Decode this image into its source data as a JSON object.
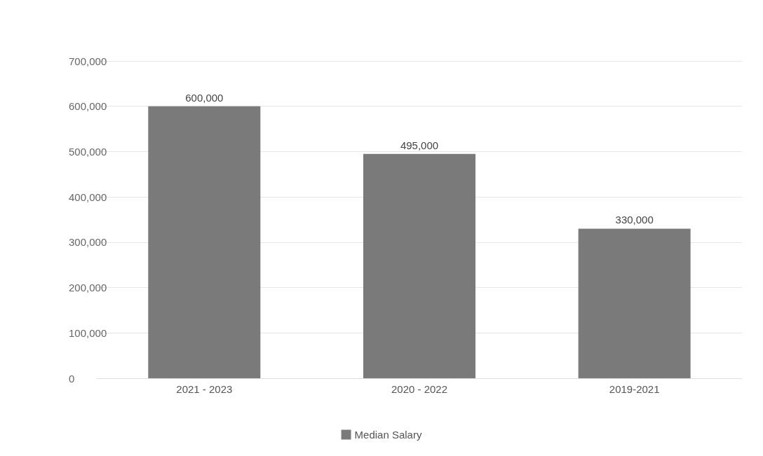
{
  "chart_data": {
    "type": "bar",
    "categories": [
      "2021 - 2023",
      "2020 - 2022",
      "2019-2021"
    ],
    "series": [
      {
        "name": "Median Salary",
        "color": "#7a7a7a",
        "values": [
          600000,
          495000,
          330000
        ],
        "value_labels": [
          "600,000",
          "495,000",
          "330,000"
        ]
      }
    ],
    "ylim": [
      0,
      700000
    ],
    "yticks": [
      0,
      {
        "value": 100000,
        "label": "100,000"
      },
      {
        "value": 200000,
        "label": "200,000"
      },
      {
        "value": 300000,
        "label": "300,000"
      },
      {
        "value": 400000,
        "label": "400,000"
      },
      {
        "value": 500000,
        "label": "500,000"
      },
      {
        "value": 600000,
        "label": "600,000"
      },
      {
        "value": 700000,
        "label": "700,000"
      }
    ],
    "grid": "y",
    "legend": "bottom"
  }
}
